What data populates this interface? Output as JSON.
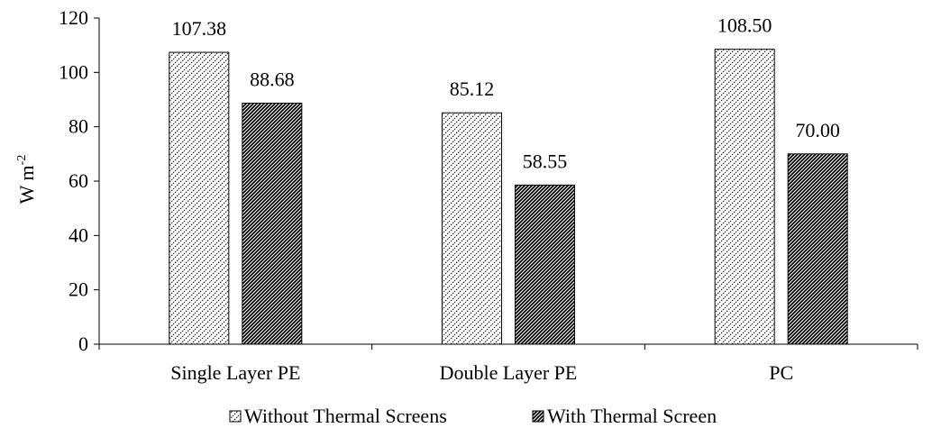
{
  "chart_data": {
    "type": "bar",
    "title": "",
    "xlabel": "",
    "ylabel_base": "W m",
    "ylabel_sup": "-2",
    "ylim": [
      0,
      120
    ],
    "yticks": [
      0,
      20,
      40,
      60,
      80,
      100,
      120
    ],
    "categories": [
      "Single Layer PE",
      "Double Layer PE",
      "PC"
    ],
    "series": [
      {
        "name": "Without Thermal Screens",
        "values": [
          107.38,
          85.12,
          108.5
        ],
        "labels": [
          "107.38",
          "85.12",
          "108.50"
        ],
        "pattern": "light-hatch"
      },
      {
        "name": "With Thermal Screen",
        "values": [
          88.68,
          58.55,
          70.0
        ],
        "labels": [
          "88.68",
          "58.55",
          "70.00"
        ],
        "pattern": "dark-hatch"
      }
    ],
    "legend_position": "bottom",
    "grid": false
  }
}
